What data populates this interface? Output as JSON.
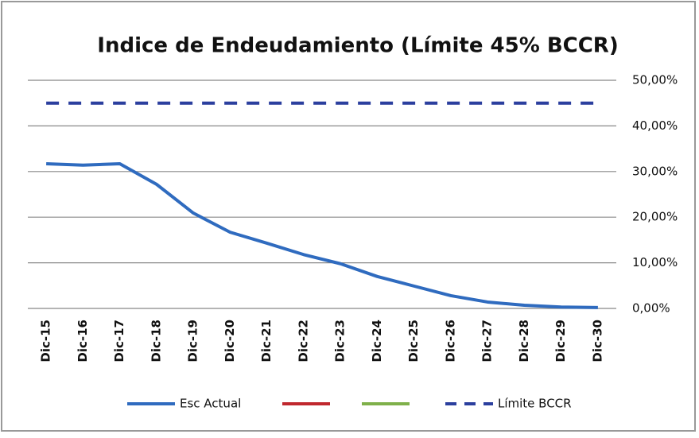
{
  "chart_data": {
    "type": "line",
    "title": "Indice de Endeudamiento (Límite 45% BCCR)",
    "categories": [
      "Dic-15",
      "Dic-16",
      "Dic-17",
      "Dic-18",
      "Dic-19",
      "Dic-20",
      "Dic-21",
      "Dic-22",
      "Dic-23",
      "Dic-24",
      "Dic-25",
      "Dic-26",
      "Dic-27",
      "Dic-28",
      "Dic-29",
      "Dic-30"
    ],
    "series": [
      {
        "name": "Esc Actual",
        "color": "#2f6bbf",
        "values": [
          31.7,
          31.4,
          31.7,
          27.2,
          20.9,
          16.7,
          14.3,
          11.8,
          9.8,
          7.0,
          4.9,
          2.8,
          1.4,
          0.7,
          0.3,
          0.2
        ]
      },
      {
        "color": "#c0282e",
        "values": [
          null,
          null,
          null,
          null,
          null,
          null,
          null,
          null,
          null,
          null,
          null,
          null,
          null,
          null,
          null,
          null
        ]
      },
      {
        "color": "#7fb04a",
        "values": [
          null,
          null,
          null,
          null,
          null,
          null,
          null,
          null,
          null,
          null,
          null,
          null,
          null,
          null,
          null,
          null
        ]
      },
      {
        "name": "Límite BCCR",
        "color": "#2b3f9e",
        "dashed": true,
        "values": [
          45,
          45,
          45,
          45,
          45,
          45,
          45,
          45,
          45,
          45,
          45,
          45,
          45,
          45,
          45,
          45
        ]
      }
    ],
    "ylim": [
      0,
      50
    ],
    "yticks": [
      {
        "value": 0,
        "label": "0,00%"
      },
      {
        "value": 10,
        "label": "10,00%"
      },
      {
        "value": 20,
        "label": "20,00%"
      },
      {
        "value": 30,
        "label": "30,00%"
      },
      {
        "value": 40,
        "label": "40,00%"
      },
      {
        "value": 50,
        "label": "50,00%"
      }
    ],
    "y_axis_side": "right",
    "grid": true,
    "legend": "bottom"
  }
}
